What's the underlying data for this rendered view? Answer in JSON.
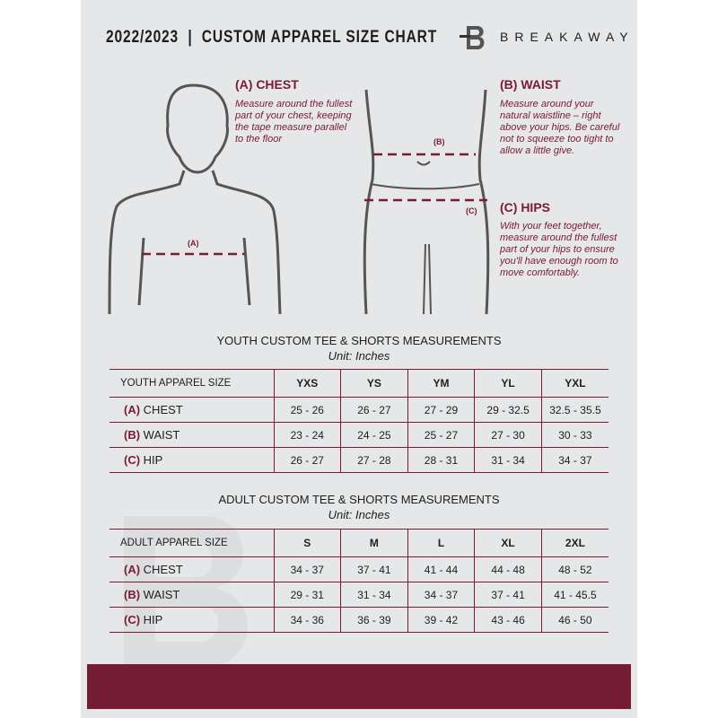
{
  "header": {
    "title": "2022/2023  |  CUSTOM APPAREL SIZE CHART",
    "brand": "BREAKAWAY",
    "logo_letter": "B"
  },
  "measures": {
    "chest": {
      "title": "(A) CHEST",
      "desc": "Measure around the fullest part of your chest, keeping the tape measure parallel to the floor",
      "marker": "(A)"
    },
    "waist": {
      "title": "(B) WAIST",
      "desc": "Measure around your natural waistline – right above your hips. Be careful not to squeeze too tight to allow a little give.",
      "marker": "(B)"
    },
    "hips": {
      "title": "(C) HIPS",
      "desc": "With your feet together, measure around the fullest part of your hips to ensure you'll have enough room to move comfortably.",
      "marker": "(C)"
    }
  },
  "youth": {
    "title": "YOUTH CUSTOM TEE & SHORTS MEASUREMENTS",
    "unit": "Unit: Inches",
    "size_label": "YOUTH APPAREL SIZE",
    "sizes": [
      "YXS",
      "YS",
      "YM",
      "YL",
      "YXL"
    ],
    "rows": [
      {
        "code": "(A)",
        "name": "CHEST",
        "values": [
          "25 - 26",
          "26 - 27",
          "27 - 29",
          "29 - 32.5",
          "32.5 - 35.5"
        ]
      },
      {
        "code": "(B)",
        "name": "WAIST",
        "values": [
          "23 - 24",
          "24 - 25",
          "25 - 27",
          "27 - 30",
          "30 - 33"
        ]
      },
      {
        "code": "(C)",
        "name": "HIP",
        "values": [
          "26 - 27",
          "27 - 28",
          "28 - 31",
          "31 - 34",
          "34 - 37"
        ]
      }
    ]
  },
  "adult": {
    "title": "ADULT CUSTOM TEE & SHORTS MEASUREMENTS",
    "unit": "Unit: Inches",
    "size_label": "ADULT APPAREL SIZE",
    "sizes": [
      "S",
      "M",
      "L",
      "XL",
      "2XL"
    ],
    "rows": [
      {
        "code": "(A)",
        "name": "CHEST",
        "values": [
          "34 - 37",
          "37 - 41",
          "41 - 44",
          "44 - 48",
          "48 - 52"
        ]
      },
      {
        "code": "(B)",
        "name": "WAIST",
        "values": [
          "29 - 31",
          "31 - 34",
          "34 - 37",
          "37 - 41",
          "41 - 45.5"
        ]
      },
      {
        "code": "(C)",
        "name": "HIP",
        "values": [
          "34 - 36",
          "36 - 39",
          "39 - 42",
          "43 - 46",
          "46 - 50"
        ]
      }
    ]
  },
  "colors": {
    "accent": "#7a1a33",
    "footer": "#731c33",
    "background": "#e6e7e8"
  }
}
